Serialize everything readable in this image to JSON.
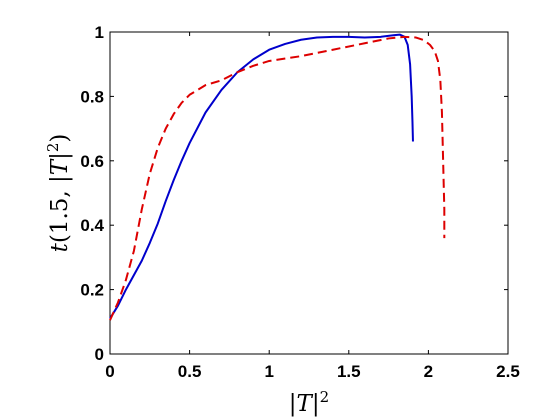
{
  "chart_data": {
    "type": "line",
    "title": "",
    "xlabel": "|T|²",
    "ylabel": "t(1.5, |T|²)",
    "xlim": [
      0,
      2.5
    ],
    "ylim": [
      0,
      1
    ],
    "xticks": [
      0,
      0.5,
      1,
      1.5,
      2,
      2.5
    ],
    "yticks": [
      0,
      0.2,
      0.4,
      0.6,
      0.8,
      1
    ],
    "xtick_labels": [
      "0",
      "0.5",
      "1",
      "1.5",
      "2",
      "2.5"
    ],
    "ytick_labels": [
      "0",
      "0.2",
      "0.4",
      "0.6",
      "0.8",
      "1"
    ],
    "grid": false,
    "legend": "none",
    "series": [
      {
        "color": "#0000cc",
        "style": "solid",
        "points": [
          [
            0.0,
            0.11
          ],
          [
            0.05,
            0.15
          ],
          [
            0.1,
            0.2
          ],
          [
            0.15,
            0.245
          ],
          [
            0.2,
            0.29
          ],
          [
            0.25,
            0.345
          ],
          [
            0.3,
            0.405
          ],
          [
            0.35,
            0.475
          ],
          [
            0.4,
            0.54
          ],
          [
            0.45,
            0.6
          ],
          [
            0.5,
            0.655
          ],
          [
            0.6,
            0.75
          ],
          [
            0.7,
            0.82
          ],
          [
            0.8,
            0.875
          ],
          [
            0.9,
            0.915
          ],
          [
            1.0,
            0.945
          ],
          [
            1.1,
            0.963
          ],
          [
            1.2,
            0.976
          ],
          [
            1.3,
            0.983
          ],
          [
            1.4,
            0.985
          ],
          [
            1.5,
            0.985
          ],
          [
            1.6,
            0.983
          ],
          [
            1.7,
            0.985
          ],
          [
            1.78,
            0.99
          ],
          [
            1.82,
            0.992
          ],
          [
            1.85,
            0.985
          ],
          [
            1.87,
            0.96
          ],
          [
            1.885,
            0.9
          ],
          [
            1.895,
            0.8
          ],
          [
            1.9,
            0.72
          ],
          [
            1.903,
            0.66
          ]
        ]
      },
      {
        "color": "#dd0000",
        "style": "dashed",
        "points": [
          [
            0.0,
            0.105
          ],
          [
            0.05,
            0.16
          ],
          [
            0.1,
            0.23
          ],
          [
            0.15,
            0.32
          ],
          [
            0.2,
            0.45
          ],
          [
            0.25,
            0.56
          ],
          [
            0.3,
            0.64
          ],
          [
            0.35,
            0.7
          ],
          [
            0.4,
            0.745
          ],
          [
            0.45,
            0.78
          ],
          [
            0.5,
            0.805
          ],
          [
            0.6,
            0.835
          ],
          [
            0.7,
            0.85
          ],
          [
            0.8,
            0.875
          ],
          [
            0.9,
            0.895
          ],
          [
            1.0,
            0.91
          ],
          [
            1.2,
            0.925
          ],
          [
            1.4,
            0.945
          ],
          [
            1.6,
            0.965
          ],
          [
            1.75,
            0.98
          ],
          [
            1.85,
            0.985
          ],
          [
            1.92,
            0.983
          ],
          [
            1.97,
            0.975
          ],
          [
            2.01,
            0.96
          ],
          [
            2.04,
            0.94
          ],
          [
            2.06,
            0.91
          ],
          [
            2.075,
            0.85
          ],
          [
            2.085,
            0.75
          ],
          [
            2.09,
            0.65
          ],
          [
            2.095,
            0.55
          ],
          [
            2.1,
            0.45
          ],
          [
            2.1,
            0.36
          ]
        ]
      }
    ]
  }
}
